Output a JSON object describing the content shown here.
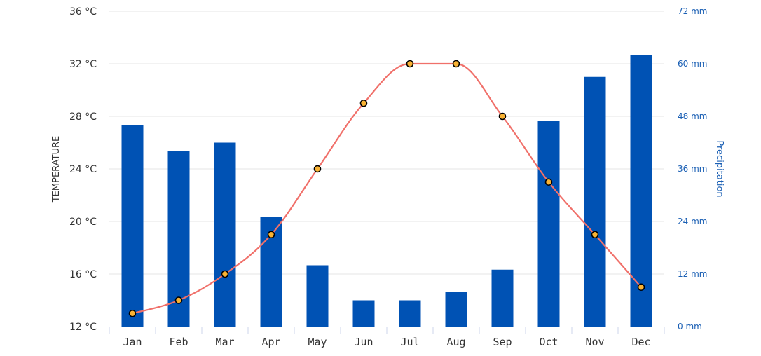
{
  "chart_data": {
    "type": "bar+line",
    "categories": [
      "Jan",
      "Feb",
      "Mar",
      "Apr",
      "May",
      "Jun",
      "Jul",
      "Aug",
      "Sep",
      "Oct",
      "Nov",
      "Dec"
    ],
    "series": [
      {
        "name": "Precipitation",
        "type": "bar",
        "axis": "right",
        "color": "#0052b4",
        "values": [
          46,
          40,
          42,
          25,
          14,
          6,
          6,
          8,
          13,
          47,
          57,
          62
        ]
      },
      {
        "name": "Temperature",
        "type": "line",
        "axis": "left",
        "color": "#f0706a",
        "marker_fill": "#f9b233",
        "values": [
          13,
          14,
          16,
          19,
          24,
          29,
          32,
          32,
          28,
          23,
          19,
          15
        ]
      }
    ],
    "left_axis": {
      "title": "TEMPERATURE",
      "ylim": [
        12,
        36
      ],
      "ticks": [
        "12 °C",
        "16 °C",
        "20 °C",
        "24 °C",
        "28 °C",
        "32 °C",
        "36 °C"
      ]
    },
    "right_axis": {
      "title": "Precipitation",
      "ylim": [
        0,
        72
      ],
      "ticks": [
        "0 mm",
        "12 mm",
        "24 mm",
        "36 mm",
        "48 mm",
        "60 mm",
        "72 mm"
      ]
    },
    "grid": true
  }
}
